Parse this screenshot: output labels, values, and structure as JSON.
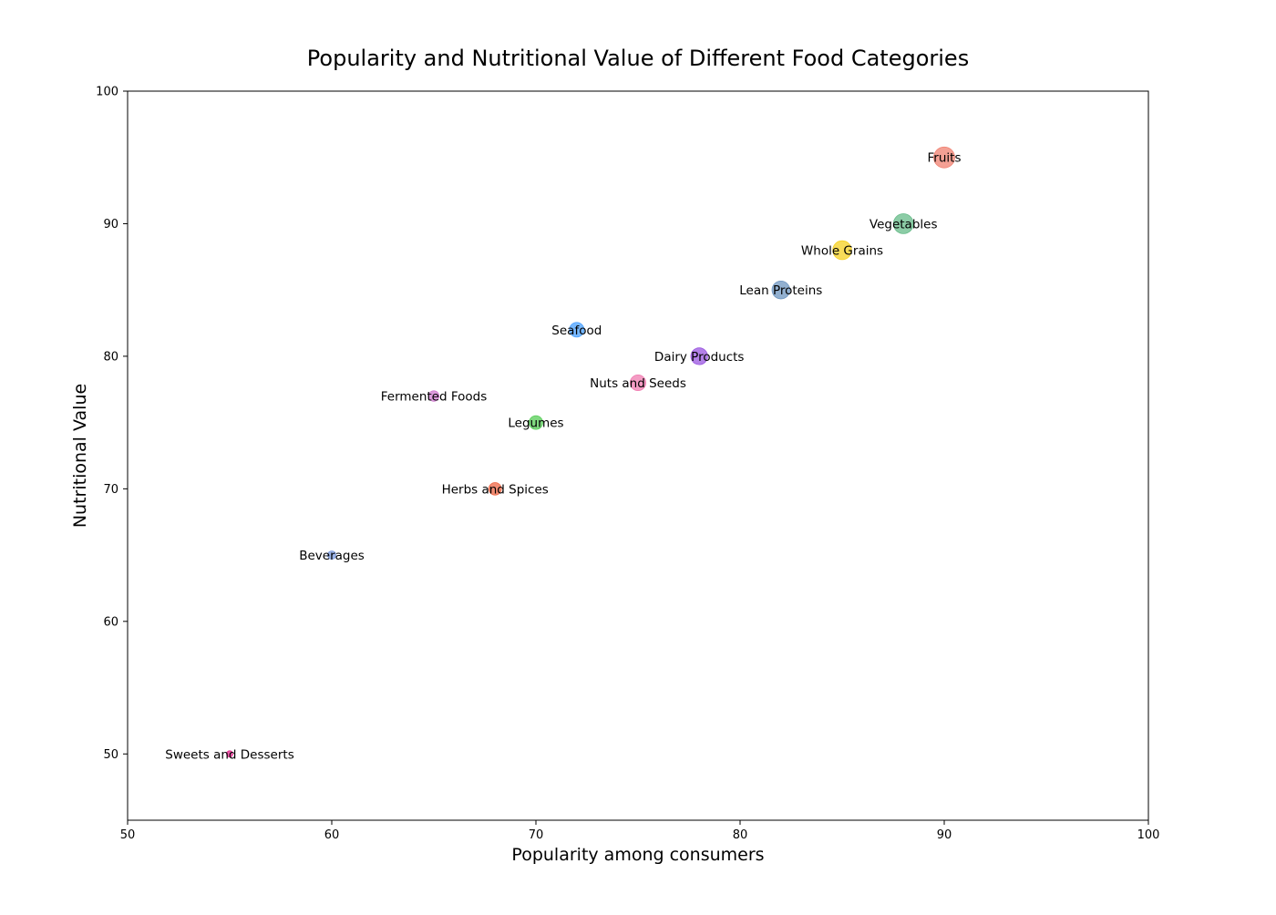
{
  "chart_data": {
    "type": "scatter",
    "title": "Popularity and Nutritional Value of Different Food Categories",
    "xlabel": "Popularity among consumers",
    "ylabel": "Nutritional Value",
    "xlim": [
      50,
      100
    ],
    "ylim": [
      45,
      100
    ],
    "xticks": [
      50,
      60,
      70,
      80,
      90,
      100
    ],
    "yticks": [
      50,
      60,
      70,
      80,
      90,
      100
    ],
    "grid": false,
    "points": [
      {
        "label": "Fruits",
        "x": 90,
        "y": 95,
        "size": 10,
        "color": "#f08070"
      },
      {
        "label": "Vegetables",
        "x": 88,
        "y": 90,
        "size": 9.5,
        "color": "#66bb88"
      },
      {
        "label": "Whole Grains",
        "x": 85,
        "y": 88,
        "size": 9,
        "color": "#f5d020"
      },
      {
        "label": "Lean Proteins",
        "x": 82,
        "y": 85,
        "size": 8.5,
        "color": "#6e95c0"
      },
      {
        "label": "Seafood",
        "x": 72,
        "y": 82,
        "size": 7,
        "color": "#4aa0ff"
      },
      {
        "label": "Dairy Products",
        "x": 78,
        "y": 80,
        "size": 8,
        "color": "#9a55e0"
      },
      {
        "label": "Nuts and Seeds",
        "x": 75,
        "y": 78,
        "size": 7.5,
        "color": "#f07bb0"
      },
      {
        "label": "Fermented Foods",
        "x": 65,
        "y": 77,
        "size": 5,
        "color": "#d07ad0"
      },
      {
        "label": "Legumes",
        "x": 70,
        "y": 75,
        "size": 6.5,
        "color": "#55cc55"
      },
      {
        "label": "Herbs and Spices",
        "x": 68,
        "y": 70,
        "size": 6,
        "color": "#ee6644"
      },
      {
        "label": "Beverages",
        "x": 60,
        "y": 65,
        "size": 4,
        "color": "#7a99dd"
      },
      {
        "label": "Sweets and Desserts",
        "x": 55,
        "y": 50,
        "size": 3,
        "color": "#e02288"
      }
    ]
  }
}
